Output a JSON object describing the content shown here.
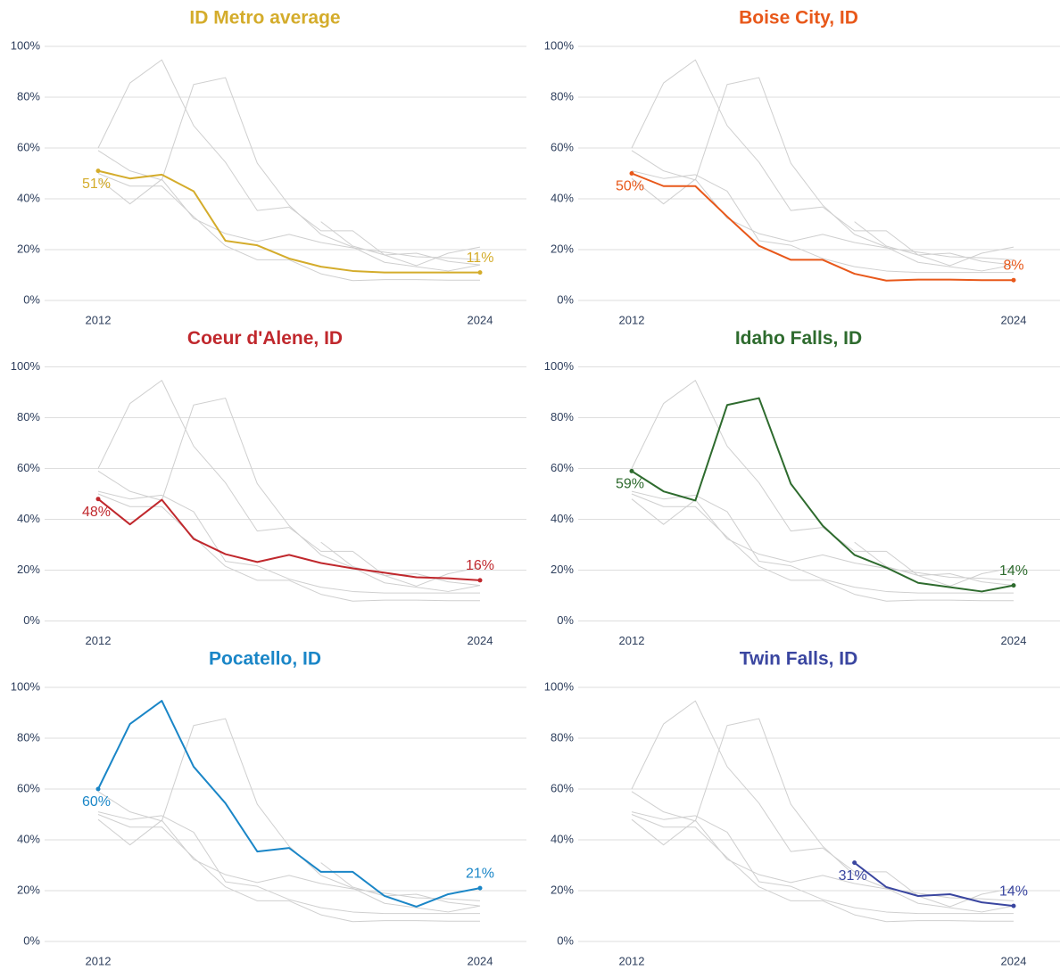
{
  "chart_data": {
    "type": "line",
    "x": [
      2012,
      2013,
      2014,
      2015,
      2016,
      2017,
      2018,
      2019,
      2020,
      2021,
      2022,
      2023,
      2024
    ],
    "xticks": [
      2012,
      2024
    ],
    "ylim": [
      0,
      100
    ],
    "yticks": [
      {
        "value": 0,
        "label": "0%"
      },
      {
        "value": 20,
        "label": "20%"
      },
      {
        "value": 40,
        "label": "40%"
      },
      {
        "value": 60,
        "label": "60%"
      },
      {
        "value": 80,
        "label": "80%"
      },
      {
        "value": 100,
        "label": "100%"
      }
    ],
    "grid": true,
    "series": [
      {
        "name": "ID Metro average",
        "color": "#d4ac2b",
        "values": [
          51,
          48,
          49.5,
          43,
          23.5,
          21.7,
          16.5,
          13.3,
          11.6,
          11,
          11,
          11,
          11
        ],
        "value_labels": [
          "51%",
          null,
          null,
          null,
          null,
          null,
          null,
          null,
          null,
          null,
          null,
          null,
          "11%"
        ]
      },
      {
        "name": "Boise City, ID",
        "color": "#e8581a",
        "values": [
          50,
          45,
          45,
          33,
          21.5,
          16,
          16,
          10.5,
          7.8,
          8.2,
          8.2,
          8,
          8
        ],
        "value_labels": [
          "50%",
          null,
          null,
          null,
          null,
          null,
          null,
          null,
          null,
          null,
          null,
          null,
          "8%"
        ]
      },
      {
        "name": "Coeur d'Alene, ID",
        "color": "#c0282d",
        "values": [
          48,
          38,
          47.7,
          32.3,
          26.3,
          23.2,
          26,
          22.8,
          20.7,
          19,
          17.2,
          16.8,
          16
        ],
        "value_labels": [
          "48%",
          null,
          null,
          null,
          null,
          null,
          null,
          null,
          null,
          null,
          null,
          null,
          "16%"
        ]
      },
      {
        "name": "Idaho Falls, ID",
        "color": "#2e6b2e",
        "values": [
          59,
          51,
          47.4,
          85,
          87.7,
          54,
          37.5,
          26,
          21,
          15,
          13.3,
          11.6,
          14
        ],
        "value_labels": [
          "59%",
          null,
          null,
          null,
          null,
          null,
          null,
          null,
          null,
          null,
          null,
          null,
          "14%"
        ]
      },
      {
        "name": "Pocatello, ID",
        "color": "#1a86c7",
        "values": [
          60,
          85.6,
          94.7,
          68.8,
          54.4,
          35.4,
          36.8,
          27.4,
          27.4,
          17.9,
          13.7,
          18.6,
          21
        ],
        "value_labels": [
          "60%",
          null,
          null,
          null,
          null,
          null,
          null,
          null,
          null,
          null,
          null,
          null,
          "21%"
        ]
      },
      {
        "name": "Twin Falls, ID",
        "color": "#3a46a0",
        "values": [
          null,
          null,
          null,
          null,
          null,
          null,
          null,
          31,
          21.4,
          17.9,
          18.6,
          15.4,
          14
        ],
        "value_labels": [
          null,
          null,
          null,
          null,
          null,
          null,
          null,
          "31%",
          null,
          null,
          null,
          null,
          "14%"
        ]
      }
    ]
  }
}
